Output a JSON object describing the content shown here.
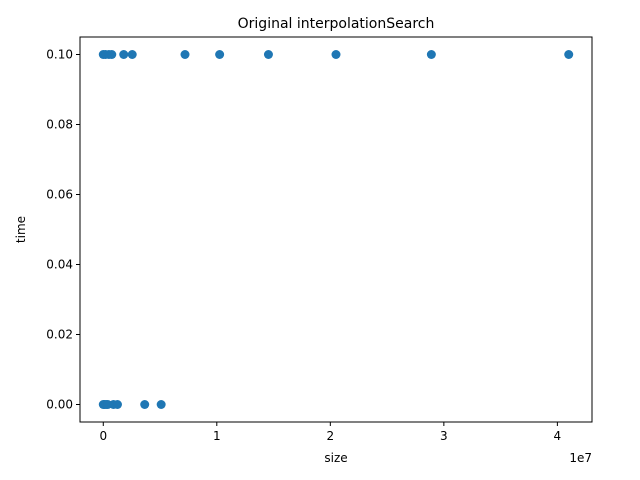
{
  "chart_data": {
    "type": "scatter",
    "title": "Original interpolationSearch",
    "xlabel": "size",
    "ylabel": "time",
    "x_offset_label": "1e7",
    "xlim": [
      -2050000,
      43050000
    ],
    "ylim": [
      -0.005,
      0.105
    ],
    "x_ticks": [
      0,
      10000000,
      20000000,
      30000000,
      40000000
    ],
    "x_tick_labels": [
      "0",
      "1",
      "2",
      "3",
      "4"
    ],
    "y_ticks": [
      0.0,
      0.02,
      0.04,
      0.06,
      0.08,
      0.1
    ],
    "y_tick_labels": [
      "0.00",
      "0.02",
      "0.04",
      "0.06",
      "0.08",
      "0.10"
    ],
    "grid": false,
    "color": "#1f77b4",
    "points": [
      {
        "x": 0,
        "y": 0.1
      },
      {
        "x": 200000,
        "y": 0.1
      },
      {
        "x": 500000,
        "y": 0.1
      },
      {
        "x": 750000,
        "y": 0.1
      },
      {
        "x": 1800000,
        "y": 0.1
      },
      {
        "x": 2550000,
        "y": 0.1
      },
      {
        "x": 7200000,
        "y": 0.1
      },
      {
        "x": 10250000,
        "y": 0.1
      },
      {
        "x": 14550000,
        "y": 0.1
      },
      {
        "x": 20500000,
        "y": 0.1
      },
      {
        "x": 28900000,
        "y": 0.1
      },
      {
        "x": 41000000,
        "y": 0.1
      },
      {
        "x": 0,
        "y": 0.0
      },
      {
        "x": 100000,
        "y": 0.0
      },
      {
        "x": 250000,
        "y": 0.0
      },
      {
        "x": 400000,
        "y": 0.0
      },
      {
        "x": 900000,
        "y": 0.0
      },
      {
        "x": 1250000,
        "y": 0.0
      },
      {
        "x": 3650000,
        "y": 0.0
      },
      {
        "x": 5100000,
        "y": 0.0
      }
    ]
  }
}
